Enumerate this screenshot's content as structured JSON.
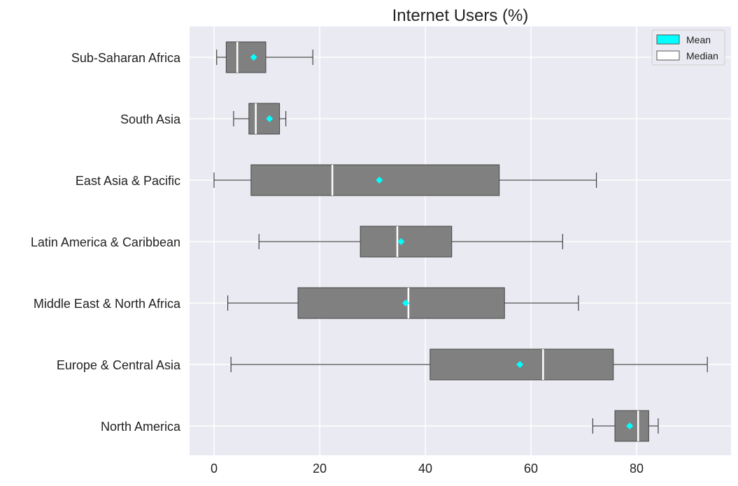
{
  "chart_data": {
    "type": "boxplot",
    "orientation": "horizontal",
    "title": "Internet Users (%)",
    "xlabel": "",
    "ylabel": "",
    "xlim": [
      -4.5,
      98.5
    ],
    "xticks": [
      0,
      20,
      40,
      60,
      80
    ],
    "grid": true,
    "legend": {
      "placement": "top-right",
      "entries": [
        {
          "label": "Mean",
          "color": "#00ffff"
        },
        {
          "label": "Median",
          "color": "#ffffff"
        }
      ]
    },
    "colors": {
      "box": "#808080",
      "mean": "#00ffff",
      "median": "#ffffff",
      "background": "#eaeaf2",
      "grid": "#ffffff"
    },
    "categories": [
      "Sub-Saharan Africa",
      "South Asia",
      "East Asia & Pacific",
      "Latin America & Caribbean",
      "Middle East & North Africa",
      "Europe & Central Asia",
      "North America"
    ],
    "boxes": [
      {
        "whisker_low": 0.5,
        "q1": 2.3,
        "median": 4.4,
        "q3": 9.8,
        "whisker_high": 18.7,
        "mean": 7.5
      },
      {
        "whisker_low": 3.7,
        "q1": 6.6,
        "median": 7.9,
        "q3": 12.4,
        "whisker_high": 13.6,
        "mean": 10.5
      },
      {
        "whisker_low": 0.0,
        "q1": 7.0,
        "median": 22.4,
        "q3": 54.0,
        "whisker_high": 72.4,
        "mean": 31.3
      },
      {
        "whisker_low": 8.5,
        "q1": 27.7,
        "median": 34.7,
        "q3": 45.0,
        "whisker_high": 66.0,
        "mean": 35.4
      },
      {
        "whisker_low": 2.6,
        "q1": 15.9,
        "median": 36.8,
        "q3": 55.0,
        "whisker_high": 69.0,
        "mean": 36.3
      },
      {
        "whisker_low": 3.2,
        "q1": 40.9,
        "median": 62.3,
        "q3": 75.6,
        "whisker_high": 93.4,
        "mean": 57.9
      },
      {
        "whisker_low": 71.7,
        "q1": 75.9,
        "median": 80.3,
        "q3": 82.3,
        "whisker_high": 84.1,
        "mean": 78.7
      }
    ]
  }
}
